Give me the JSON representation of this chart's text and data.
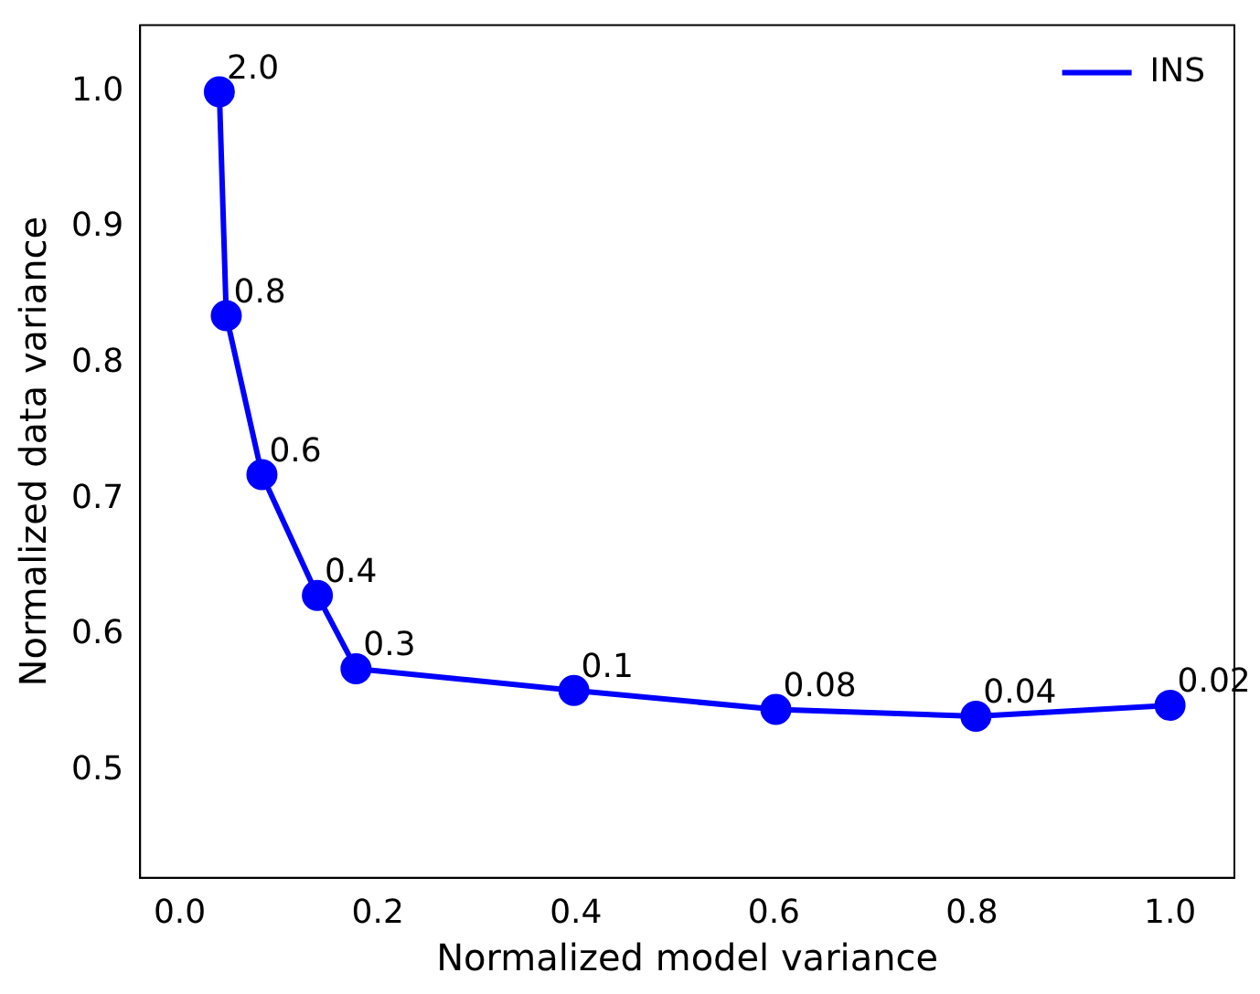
{
  "chart_data": {
    "type": "line",
    "xlabel": "Normalized model variance",
    "ylabel": "Normalized data variance",
    "x": [
      0.04,
      0.047,
      0.083,
      0.139,
      0.178,
      0.398,
      0.602,
      0.804,
      1.0
    ],
    "series": [
      {
        "name": "INS",
        "color": "#0000ff",
        "values": [
          1.0,
          0.835,
          0.718,
          0.629,
          0.575,
          0.559,
          0.545,
          0.54,
          0.548
        ]
      }
    ],
    "xlim": [
      -0.04,
      1.065
    ],
    "xticks": [
      {
        "value": 0,
        "label": "0.0"
      },
      0.2,
      0.4,
      0.6,
      0.8,
      {
        "value": 1,
        "label": "1.0"
      }
    ],
    "ylim": [
      0.421,
      1.049
    ],
    "yticks": [
      0.5,
      0.6,
      0.7,
      0.8,
      0.9,
      {
        "value": 1,
        "label": "1.0"
      }
    ],
    "annotations": [
      {
        "text": "2.0",
        "x": 0.04,
        "y": 1.0
      },
      {
        "text": "0.8",
        "x": 0.047,
        "y": 0.835
      },
      {
        "text": "0.6",
        "x": 0.083,
        "y": 0.718
      },
      {
        "text": "0.4",
        "x": 0.139,
        "y": 0.629
      },
      {
        "text": "0.3",
        "x": 0.178,
        "y": 0.575
      },
      {
        "text": "0.1",
        "x": 0.398,
        "y": 0.559
      },
      {
        "text": "0.08",
        "x": 0.602,
        "y": 0.545
      },
      {
        "text": "0.04",
        "x": 0.804,
        "y": 0.54
      },
      {
        "text": "0.02",
        "x": 1.0,
        "y": 0.548
      }
    ],
    "legend": "top right",
    "grid": false,
    "marker": "circle",
    "line_style": "solid"
  }
}
